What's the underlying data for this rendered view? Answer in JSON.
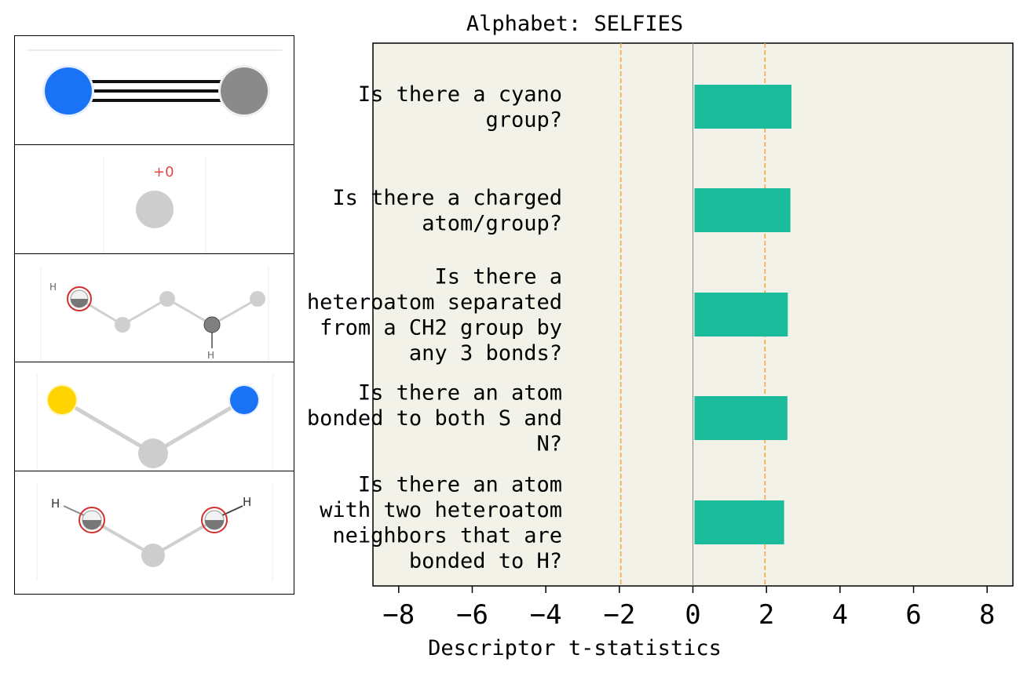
{
  "chart_data": {
    "type": "bar",
    "orientation": "horizontal",
    "title": "Alphabet: SELFIES",
    "xlabel": "Descriptor t-statistics",
    "ylabel": "",
    "xlim": [
      -8.7,
      8.7
    ],
    "xticks": [
      -8,
      -6,
      -4,
      -2,
      0,
      2,
      4,
      6,
      8
    ],
    "xtick_labels": [
      "−8",
      "−6",
      "−4",
      "−2",
      "0",
      "2",
      "4",
      "6",
      "8"
    ],
    "threshold_lines": [
      -1.96,
      1.96
    ],
    "grid": false,
    "categories": [
      [
        "Is there a cyano",
        "group?"
      ],
      [
        "Is there a charged",
        "atom/group?"
      ],
      [
        "Is there a",
        "heteroatom separated",
        "from a CH2 group by",
        "any 3 bonds?"
      ],
      [
        "Is there an atom",
        "bonded to both S and",
        "N?"
      ],
      [
        "Is there an atom",
        "with two heteroatom",
        "neighbors that are",
        "bonded to H?"
      ]
    ],
    "values": [
      2.68,
      2.65,
      2.58,
      2.57,
      2.48
    ]
  },
  "colors": {
    "bar": "#1abc9c",
    "plot_background": "#f3f2e8",
    "threshold_line": "#f5a742",
    "zero_line": "#8a8a8a"
  },
  "thumbnails": [
    {
      "icon": "cyano-group-molecule-icon",
      "labels": []
    },
    {
      "icon": "charged-atom-molecule-icon",
      "labels": [
        "+0"
      ]
    },
    {
      "icon": "heteroatom-ch2-molecule-icon",
      "labels": [
        "H",
        "H"
      ]
    },
    {
      "icon": "s-n-bonded-molecule-icon",
      "labels": []
    },
    {
      "icon": "two-heteroatom-neighbors-molecule-icon",
      "labels": [
        "H",
        "H"
      ]
    }
  ]
}
